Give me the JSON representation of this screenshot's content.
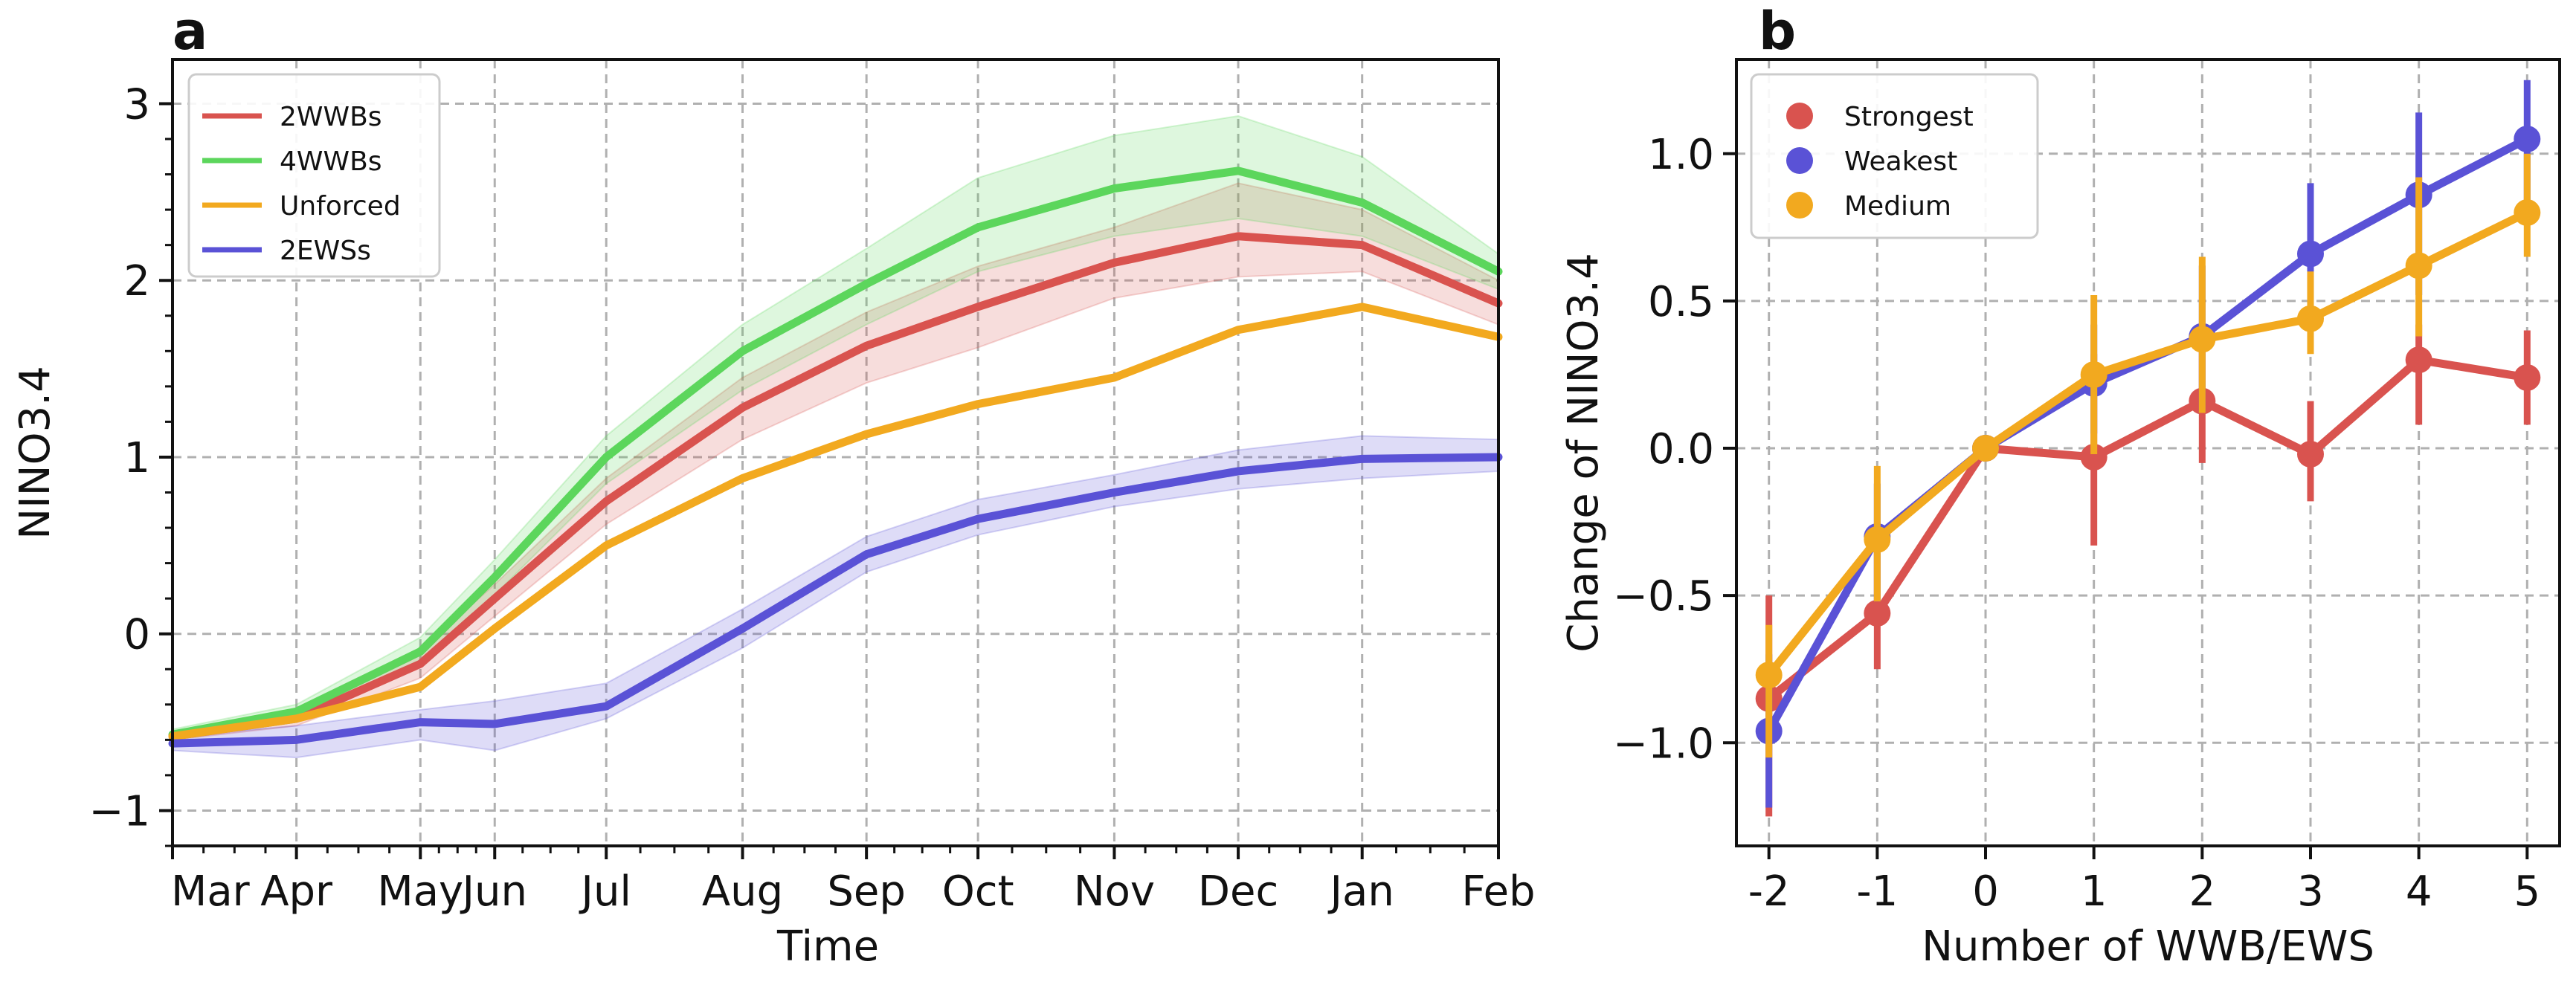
{
  "chart_data": [
    {
      "panel": "a",
      "type": "line",
      "xlabel": "Time",
      "ylabel": "NINO3.4",
      "categories": [
        "Mar",
        "Apr",
        "May",
        "Jun",
        "Jul",
        "Aug",
        "Sep",
        "Oct",
        "Nov",
        "Dec",
        "Jan",
        "Feb"
      ],
      "x_positions": [
        0,
        1,
        2,
        2.6,
        3.5,
        4.6,
        5.6,
        6.5,
        7.6,
        8.6,
        9.6,
        10.7
      ],
      "ylim": [
        -1.2,
        3.25
      ],
      "yticks": [
        -1,
        0,
        1,
        2,
        3
      ],
      "ytick_labels": [
        "−1",
        "0",
        "1",
        "2",
        "3"
      ],
      "grid": true,
      "legend_position": "top-left",
      "series": [
        {
          "name": "2WWBs",
          "color": "#d9534f",
          "values": [
            -0.58,
            -0.48,
            -0.17,
            0.2,
            0.75,
            1.28,
            1.63,
            1.85,
            2.1,
            2.25,
            2.2,
            1.87
          ],
          "lower": [
            -0.6,
            -0.52,
            -0.25,
            0.1,
            0.62,
            1.1,
            1.42,
            1.62,
            1.9,
            2.02,
            2.05,
            1.75
          ],
          "upper": [
            -0.55,
            -0.44,
            -0.09,
            0.28,
            0.88,
            1.45,
            1.82,
            2.08,
            2.3,
            2.55,
            2.4,
            2.0
          ]
        },
        {
          "name": "4WWBs",
          "color": "#5cd65c",
          "values": [
            -0.57,
            -0.44,
            -0.1,
            0.32,
            1.0,
            1.6,
            1.98,
            2.3,
            2.52,
            2.62,
            2.44,
            2.05
          ],
          "lower": [
            -0.6,
            -0.5,
            -0.18,
            0.22,
            0.85,
            1.38,
            1.75,
            2.05,
            2.25,
            2.35,
            2.25,
            1.95
          ],
          "upper": [
            -0.54,
            -0.4,
            -0.02,
            0.42,
            1.12,
            1.75,
            2.18,
            2.58,
            2.82,
            2.93,
            2.7,
            2.15
          ]
        },
        {
          "name": "Unforced",
          "color": "#f2a91f",
          "values": [
            -0.58,
            -0.48,
            -0.3,
            0.03,
            0.5,
            0.88,
            1.13,
            1.3,
            1.45,
            1.72,
            1.85,
            1.68
          ]
        },
        {
          "name": "2EWSs",
          "color": "#5a52d6",
          "values": [
            -0.62,
            -0.6,
            -0.5,
            -0.51,
            -0.41,
            0.03,
            0.45,
            0.65,
            0.8,
            0.92,
            0.99,
            1.0
          ],
          "lower": [
            -0.66,
            -0.7,
            -0.6,
            -0.66,
            -0.48,
            -0.08,
            0.35,
            0.56,
            0.72,
            0.82,
            0.88,
            0.92
          ],
          "upper": [
            -0.58,
            -0.52,
            -0.43,
            -0.38,
            -0.28,
            0.14,
            0.55,
            0.76,
            0.9,
            1.04,
            1.12,
            1.1
          ]
        }
      ]
    },
    {
      "panel": "b",
      "type": "line",
      "xlabel": "Number of WWB/EWS",
      "ylabel": "Change of NINO3.4",
      "categories": [
        "-2",
        "-1",
        "0",
        "1",
        "2",
        "3",
        "4",
        "5"
      ],
      "x": [
        -2,
        -1,
        0,
        1,
        2,
        3,
        4,
        5
      ],
      "ylim": [
        -1.35,
        1.32
      ],
      "yticks": [
        -1.0,
        -0.5,
        0.0,
        0.5,
        1.0
      ],
      "ytick_labels": [
        "−1.0",
        "−0.5",
        "0.0",
        "0.5",
        "1.0"
      ],
      "grid": true,
      "legend_position": "top-left",
      "series": [
        {
          "name": "Strongest",
          "color": "#d9534f",
          "values": [
            -0.85,
            -0.56,
            0.0,
            -0.03,
            0.16,
            -0.02,
            0.3,
            0.24
          ],
          "err_lower": [
            -1.25,
            -0.75,
            0.0,
            -0.33,
            -0.05,
            -0.18,
            0.08,
            0.08
          ],
          "err_upper": [
            -0.5,
            -0.32,
            0.0,
            0.32,
            0.38,
            0.16,
            0.42,
            0.4
          ]
        },
        {
          "name": "Weakest",
          "color": "#5a52d6",
          "values": [
            -0.96,
            -0.3,
            0.0,
            0.22,
            0.38,
            0.66,
            0.86,
            1.05
          ],
          "err_lower": [
            -1.22,
            -0.52,
            0.0,
            0.05,
            0.12,
            0.45,
            0.52,
            0.82
          ],
          "err_upper": [
            -0.7,
            -0.12,
            0.0,
            0.42,
            0.62,
            0.9,
            1.14,
            1.25
          ]
        },
        {
          "name": "Medium",
          "color": "#f2a91f",
          "values": [
            -0.77,
            -0.31,
            0.0,
            0.25,
            0.37,
            0.44,
            0.62,
            0.8
          ],
          "err_lower": [
            -1.05,
            -0.52,
            0.0,
            -0.02,
            0.12,
            0.32,
            0.38,
            0.65
          ],
          "err_upper": [
            -0.6,
            -0.06,
            0.0,
            0.52,
            0.65,
            0.6,
            0.92,
            1.0
          ]
        }
      ]
    }
  ]
}
